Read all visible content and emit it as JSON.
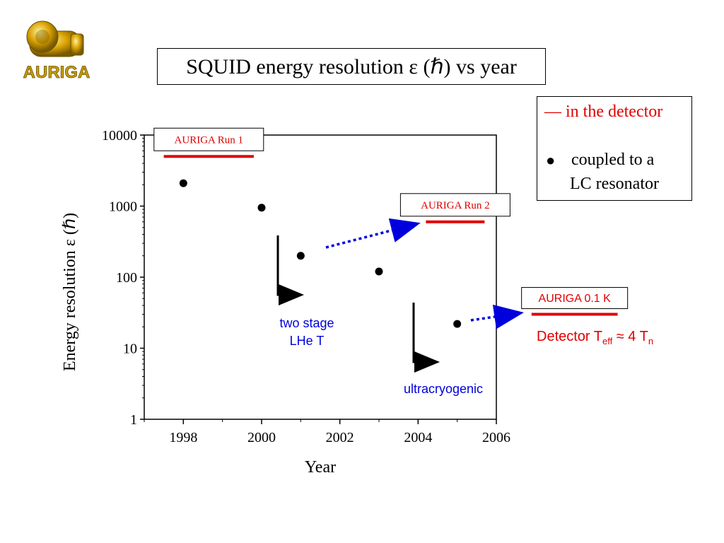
{
  "logo": {
    "text": "AURIGA"
  },
  "title": "SQUID energy resolution ε (ℏ) vs year",
  "legend": {
    "line_text": "— in the detector",
    "dot_line1": "coupled to a",
    "dot_line2": "LC resonator"
  },
  "colors": {
    "run_lines": "#e00000",
    "arrows": "#0000dd",
    "blue_text": "#0000dd",
    "red_text": "#e00000"
  },
  "chart_data": {
    "type": "scatter",
    "xlabel": "Year",
    "ylabel": "Energy resolution ε (ℏ)",
    "xlim": [
      1997,
      2006
    ],
    "ylim": [
      1,
      10000
    ],
    "yscale": "log",
    "x_ticks": [
      "1998",
      "2000",
      "2002",
      "2004",
      "2006"
    ],
    "y_ticks": [
      "1",
      "10",
      "100",
      "1000",
      "10000"
    ],
    "points": [
      {
        "x": 1998,
        "y": 2100
      },
      {
        "x": 2000,
        "y": 950
      },
      {
        "x": 2001,
        "y": 200
      },
      {
        "x": 2003,
        "y": 120
      },
      {
        "x": 2005,
        "y": 22
      }
    ],
    "segments": [
      {
        "label": "AURIGA Run 1",
        "x": [
          1997.5,
          1999.8
        ],
        "y": 5000
      },
      {
        "label": "AURIGA Run 2",
        "x": [
          2004.2,
          2005.7
        ],
        "y": 600
      },
      {
        "label": "AURIGA 0.1 K",
        "x": [
          2006.9,
          2009.1
        ],
        "y": 30
      }
    ],
    "annotations": {
      "two_stage_1": "two stage",
      "two_stage_2": "LHe T",
      "ultra": "ultracryogenic",
      "detector_prefix": "Detector T",
      "detector_sub1": "eff",
      "detector_mid": " ≈ 4 T",
      "detector_sub2": "n"
    }
  }
}
